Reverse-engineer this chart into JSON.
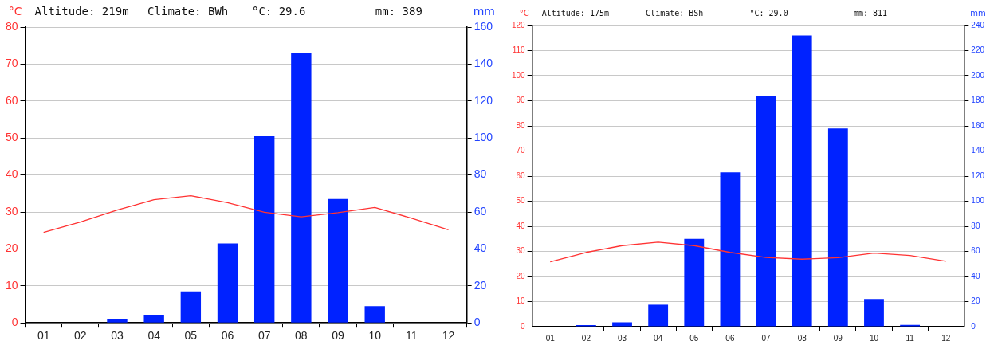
{
  "chart_data": [
    {
      "type": "bar",
      "ylabel": "°C",
      "y2label": "mm",
      "annotations": [
        "Altitude: 219m",
        "Climate: BWh",
        "°C: 29.6",
        "mm: 389"
      ],
      "categories": [
        "01",
        "02",
        "03",
        "04",
        "05",
        "06",
        "07",
        "08",
        "09",
        "10",
        "11",
        "12"
      ],
      "series": [
        {
          "axis": "y2",
          "color": "#0022ff",
          "values": [
            0,
            0,
            2.2,
            4.4,
            17,
            43,
            101,
            146,
            67,
            9,
            0,
            0
          ]
        },
        {
          "type": "line",
          "axis": "y",
          "color": "#ff3333",
          "marker": "none",
          "values": [
            24.5,
            27.3,
            30.5,
            33.3,
            34.4,
            32.5,
            29.9,
            28.7,
            29.8,
            31.2,
            28.3,
            25.2
          ]
        }
      ],
      "ylim": [
        0,
        80
      ],
      "yticks": [
        0,
        10,
        20,
        30,
        40,
        50,
        60,
        70,
        80
      ],
      "y2lim": [
        0,
        160
      ],
      "y2ticks": [
        0,
        20,
        40,
        60,
        80,
        100,
        120,
        140,
        160
      ],
      "grid": "y",
      "legend": false
    },
    {
      "type": "bar",
      "ylabel": "°C",
      "y2label": "mm",
      "annotations": [
        "Altitude: 175m",
        "Climate: BSh",
        "°C: 29.0",
        "mm: 811"
      ],
      "categories": [
        "01",
        "02",
        "03",
        "04",
        "05",
        "06",
        "07",
        "08",
        "09",
        "10",
        "11",
        "12"
      ],
      "series": [
        {
          "axis": "y2",
          "color": "#0022ff",
          "values": [
            0,
            1.2,
            3.5,
            17.5,
            70,
            123,
            184,
            232,
            158,
            22,
            1.4,
            0
          ]
        },
        {
          "type": "line",
          "axis": "y",
          "color": "#ff3333",
          "marker": "none",
          "values": [
            25.8,
            29.6,
            32.3,
            33.7,
            32.3,
            29.6,
            27.6,
            26.9,
            27.5,
            29.3,
            28.4,
            26.1
          ]
        }
      ],
      "ylim": [
        0,
        120
      ],
      "yticks": [
        0,
        10,
        20,
        30,
        40,
        50,
        60,
        70,
        80,
        90,
        100,
        110,
        120
      ],
      "y2lim": [
        0,
        240
      ],
      "y2ticks": [
        0,
        20,
        40,
        60,
        80,
        100,
        120,
        140,
        160,
        180,
        200,
        220,
        240
      ],
      "grid": "y",
      "legend": false
    }
  ]
}
